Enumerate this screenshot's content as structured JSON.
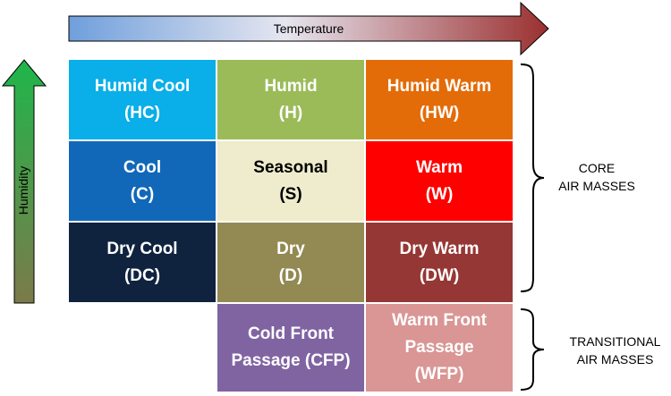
{
  "axes": {
    "temperature": "Temperature",
    "humidity": "Humidity"
  },
  "colors": {
    "temp_arrow_start": "#6f9fdc",
    "temp_arrow_end": "#9b3030",
    "humidity_arrow_top": "#1fb64b",
    "humidity_arrow_bottom": "#7c7a4a"
  },
  "cells": [
    {
      "name": "Humid Cool",
      "code": "(HC)",
      "color": "#0aaee8",
      "dark": false
    },
    {
      "name": "Humid",
      "code": "(H)",
      "color": "#9bbb59",
      "dark": false
    },
    {
      "name": "Humid Warm",
      "code": "(HW)",
      "color": "#e36c09",
      "dark": false
    },
    {
      "name": "Cool",
      "code": "(C)",
      "color": "#1168b9",
      "dark": false
    },
    {
      "name": "Seasonal",
      "code": "(S)",
      "color": "#eeeccc",
      "dark": true
    },
    {
      "name": "Warm",
      "code": "(W)",
      "color": "#ff0000",
      "dark": false
    },
    {
      "name": "Dry Cool",
      "code": "(DC)",
      "color": "#0f233f",
      "dark": false
    },
    {
      "name": "Dry",
      "code": "(D)",
      "color": "#938953",
      "dark": false
    },
    {
      "name": "Dry Warm",
      "code": "(DW)",
      "color": "#953734",
      "dark": false
    }
  ],
  "transitional_cells": [
    {
      "line1": "Cold Front",
      "line2": "Passage (CFP)",
      "line3": "",
      "color": "#8064a2"
    },
    {
      "line1": "Warm Front",
      "line2": "Passage",
      "line3": "(WFP)",
      "color": "#d99694"
    }
  ],
  "groups": {
    "core": {
      "line1": "CORE",
      "line2": "AIR MASSES"
    },
    "transitional": {
      "line1": "TRANSITIONAL",
      "line2": "AIR MASSES"
    }
  }
}
